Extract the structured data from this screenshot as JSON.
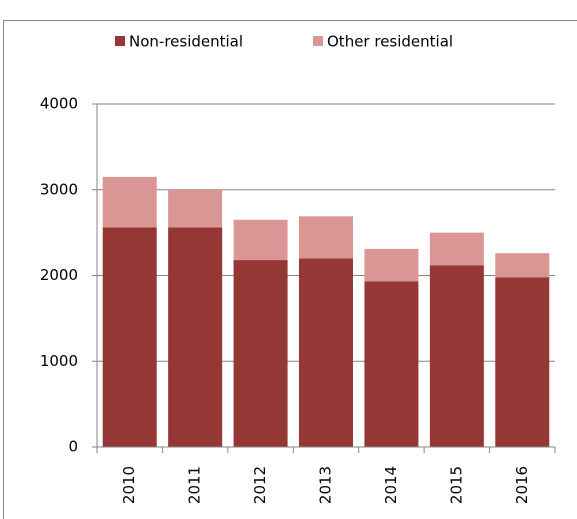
{
  "chart_data": {
    "type": "stacked-bar",
    "categories": [
      "2010",
      "2011",
      "2012",
      "2013",
      "2014",
      "2015",
      "2016"
    ],
    "series": [
      {
        "name": "Non-residential",
        "color": "#953735",
        "values": [
          2560,
          2560,
          2180,
          2200,
          1930,
          2120,
          1980
        ]
      },
      {
        "name": "Other residential",
        "color": "#d99694",
        "values": [
          590,
          440,
          470,
          490,
          380,
          380,
          280
        ]
      }
    ],
    "ylim": [
      0,
      4000
    ],
    "yticks": [
      0,
      1000,
      2000,
      3000,
      4000
    ],
    "grid": true,
    "legend": "top"
  }
}
